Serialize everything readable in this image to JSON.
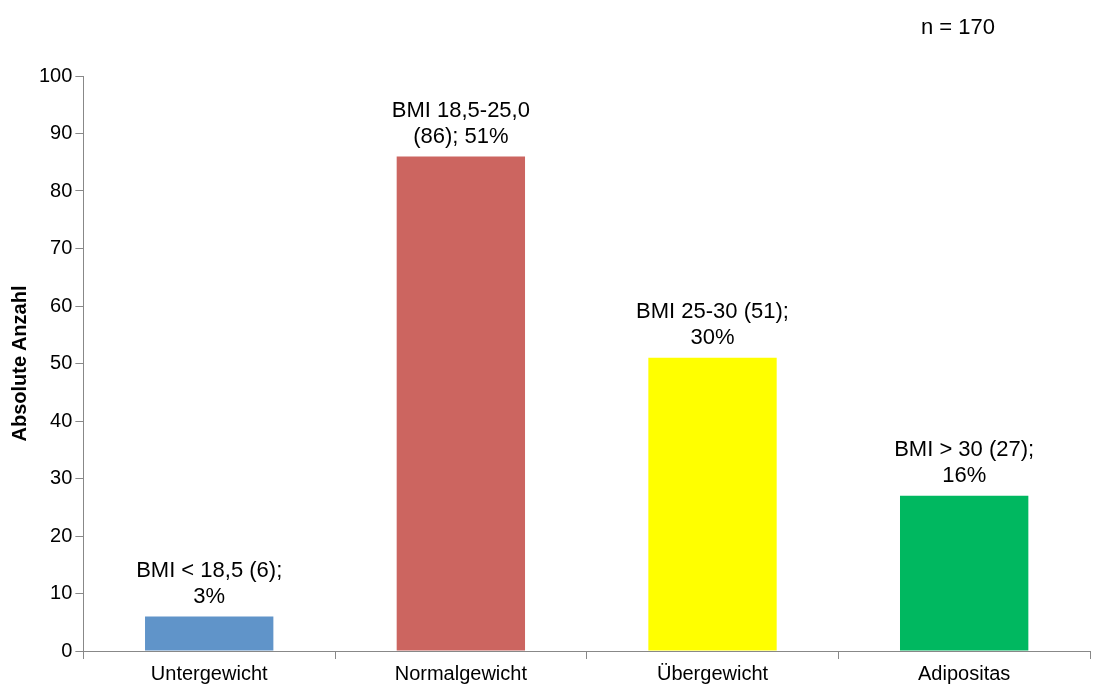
{
  "chart_data": {
    "type": "bar",
    "ylabel": "Absolute Anzahl",
    "categories": [
      "Untergewicht",
      "Normalgewicht",
      "Übergewicht",
      "Adipositas"
    ],
    "values": [
      6,
      86,
      51,
      27
    ],
    "colors": [
      "#6094c9",
      "#cc6560",
      "#ffff00",
      "#00b860"
    ],
    "value_labels": [
      "BMI < 18,5 (6); 3%",
      "BMI 18,5-25,0 (86); 51%",
      "BMI 25-30 (51); 30%",
      "BMI > 30 (27); 16%"
    ],
    "ylim": [
      0,
      100
    ],
    "yticks": [
      0,
      10,
      20,
      30,
      40,
      50,
      60,
      70,
      80,
      90,
      100
    ],
    "grid": false,
    "legend": false,
    "annotations": [
      "n = 170"
    ]
  }
}
